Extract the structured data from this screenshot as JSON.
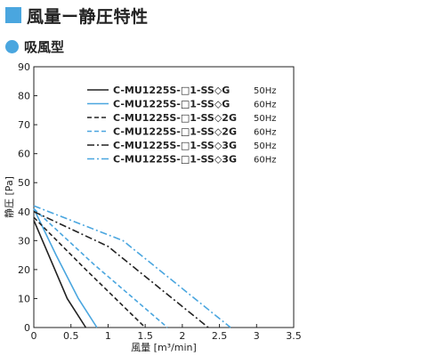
{
  "header": {
    "title": "風量ー静圧特性",
    "subtitle": "吸風型",
    "accent_color": "#4aa6df"
  },
  "chart_data": {
    "type": "line",
    "xlabel": "風量 [m³/min]",
    "ylabel": "静圧 [Pa]",
    "xlim": [
      0,
      3.5
    ],
    "ylim": [
      0,
      90
    ],
    "xticks": [
      "0",
      "0.5",
      "1",
      "1.5",
      "2",
      "2.5",
      "3",
      "3.5"
    ],
    "yticks": [
      "0",
      "10",
      "20",
      "30",
      "40",
      "50",
      "60",
      "70",
      "80",
      "90"
    ],
    "grid": false,
    "legend_position": "top-right",
    "series": [
      {
        "name": "C-MU1225S-□1-SS◇G",
        "speed": "50Hz",
        "color": "#222222",
        "dash": "solid",
        "x": [
          0,
          0.2,
          0.45,
          0.7
        ],
        "y": [
          37,
          25,
          10,
          0
        ]
      },
      {
        "name": "C-MU1225S-□1-SS◇G",
        "speed": "60Hz",
        "color": "#4aa6df",
        "dash": "solid",
        "x": [
          0,
          0.3,
          0.6,
          0.85
        ],
        "y": [
          41,
          25,
          10,
          0
        ]
      },
      {
        "name": "C-MU1225S-□1-SS◇2G",
        "speed": "50Hz",
        "color": "#222222",
        "dash": "dashed",
        "x": [
          0,
          0.7,
          1.5
        ],
        "y": [
          38,
          20,
          0
        ]
      },
      {
        "name": "C-MU1225S-□1-SS◇2G",
        "speed": "60Hz",
        "color": "#4aa6df",
        "dash": "dashed",
        "x": [
          0,
          0.8,
          1.8
        ],
        "y": [
          41,
          22,
          0
        ]
      },
      {
        "name": "C-MU1225S-□1-SS◇3G",
        "speed": "50Hz",
        "color": "#222222",
        "dash": "dashdot",
        "x": [
          0,
          1.0,
          2.35
        ],
        "y": [
          40,
          28,
          0
        ]
      },
      {
        "name": "C-MU1225S-□1-SS◇3G",
        "speed": "60Hz",
        "color": "#4aa6df",
        "dash": "dashdot",
        "x": [
          0,
          1.2,
          2.65
        ],
        "y": [
          42,
          30,
          0
        ]
      }
    ]
  }
}
